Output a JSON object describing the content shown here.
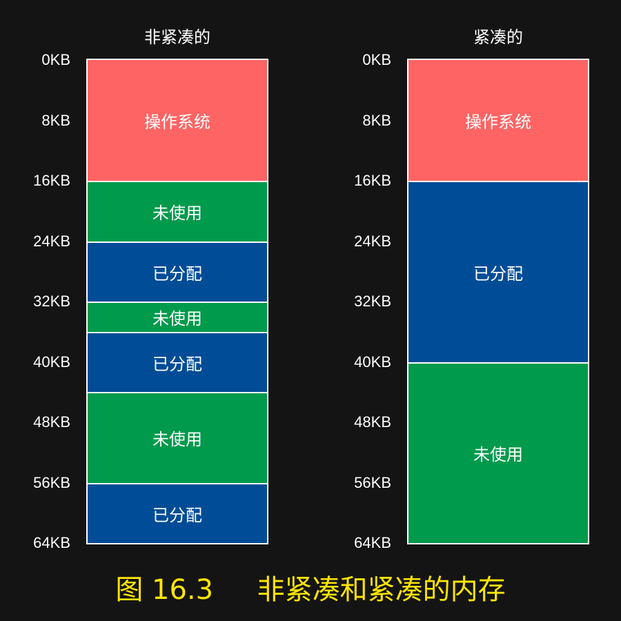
{
  "diagram": {
    "total_kb": 64,
    "colors": {
      "os": "#ff6464",
      "unused": "#009a4c",
      "allocated": "#004c97",
      "caption": "#ffe600",
      "background": "#141414"
    },
    "columns": [
      {
        "title": "非紧凑的",
        "labels": [
          "0KB",
          "8KB",
          "16KB",
          "24KB",
          "32KB",
          "40KB",
          "48KB",
          "56KB",
          "64KB"
        ],
        "segments": [
          {
            "label": "操作系统",
            "kind": "os",
            "start_kb": 0,
            "end_kb": 16
          },
          {
            "label": "未使用",
            "kind": "unused",
            "start_kb": 16,
            "end_kb": 24
          },
          {
            "label": "已分配",
            "kind": "allocated",
            "start_kb": 24,
            "end_kb": 32
          },
          {
            "label": "未使用",
            "kind": "unused",
            "start_kb": 32,
            "end_kb": 36
          },
          {
            "label": "已分配",
            "kind": "allocated",
            "start_kb": 36,
            "end_kb": 44
          },
          {
            "label": "未使用",
            "kind": "unused",
            "start_kb": 44,
            "end_kb": 56
          },
          {
            "label": "已分配",
            "kind": "allocated",
            "start_kb": 56,
            "end_kb": 64
          }
        ]
      },
      {
        "title": "紧凑的",
        "labels": [
          "0KB",
          "8KB",
          "16KB",
          "24KB",
          "32KB",
          "40KB",
          "48KB",
          "56KB",
          "64KB"
        ],
        "segments": [
          {
            "label": "操作系统",
            "kind": "os",
            "start_kb": 0,
            "end_kb": 16
          },
          {
            "label": "已分配",
            "kind": "allocated",
            "start_kb": 16,
            "end_kb": 40
          },
          {
            "label": "未使用",
            "kind": "unused",
            "start_kb": 40,
            "end_kb": 64
          }
        ]
      }
    ],
    "caption": "图 16.3     非紧凑和紧凑的内存"
  }
}
